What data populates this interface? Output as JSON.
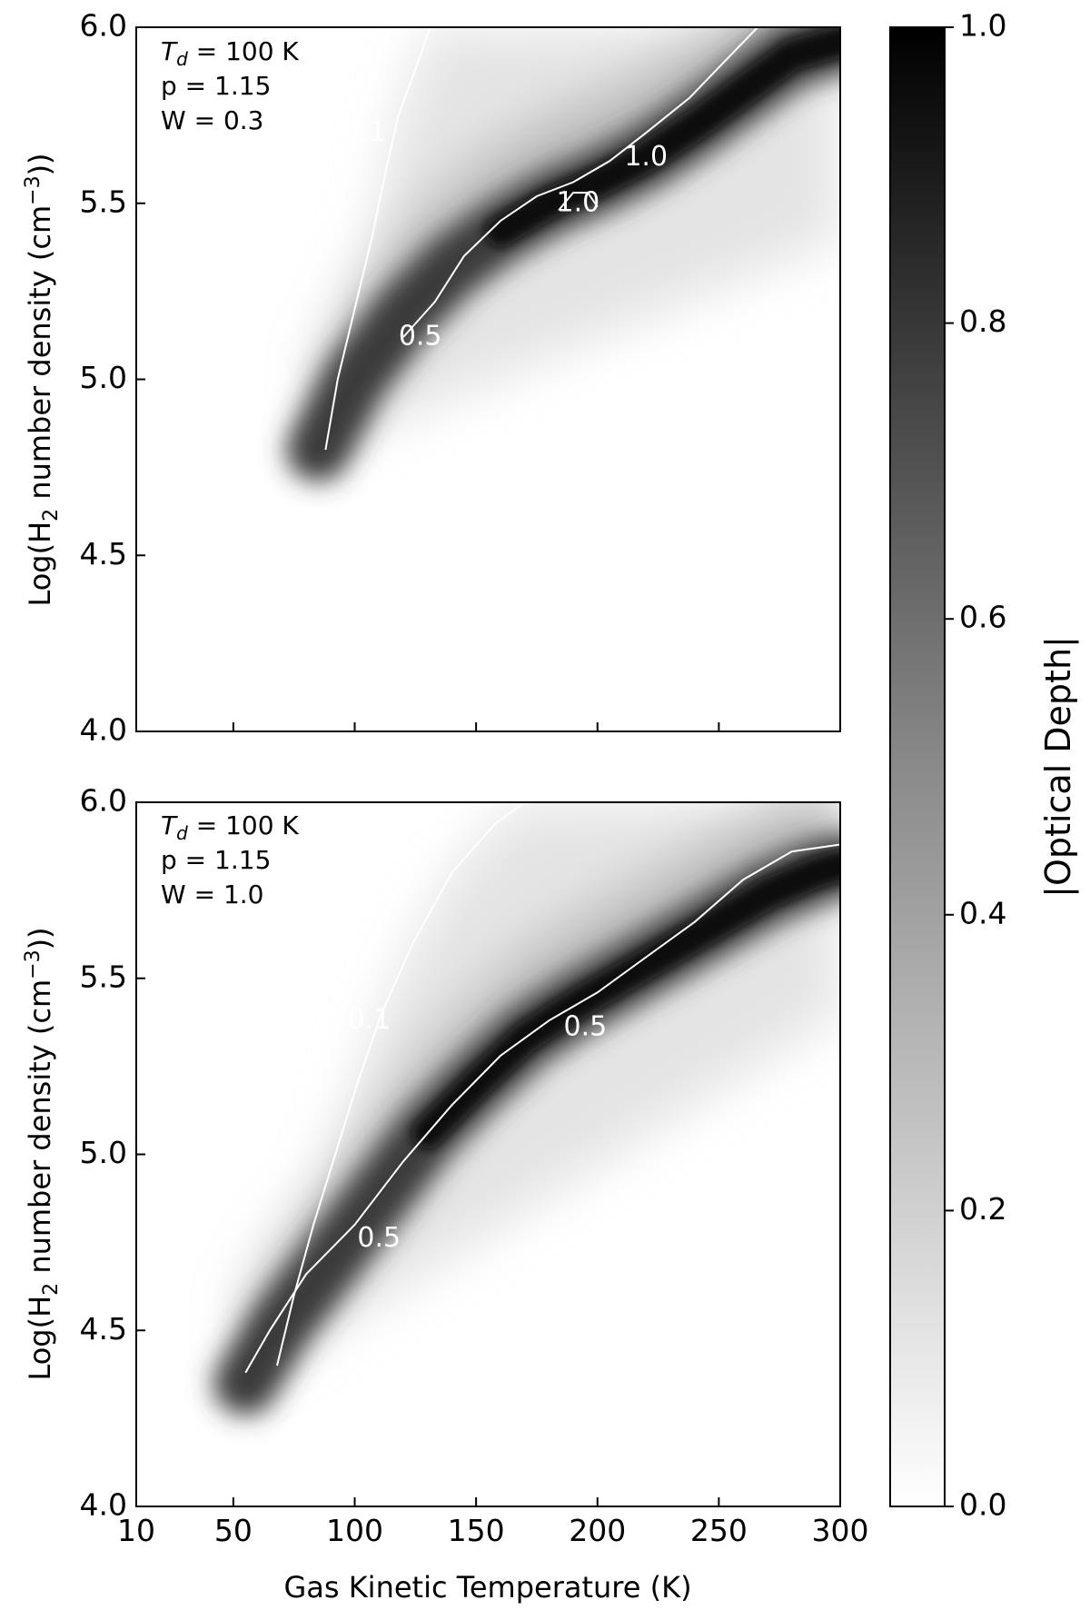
{
  "chart_data": [
    {
      "type": "heatmap",
      "panel": "top",
      "annotation": [
        "T_d = 100 K",
        "p = 1.15",
        "W = 0.3"
      ],
      "annotation_parts": {
        "td_symbol": "T",
        "td_subscript": "d",
        "td_value": " = 100 K",
        "p_line": "p = 1.15",
        "w_line": "W = 0.3"
      },
      "xlabel": "",
      "ylabel": "Log(H2 number density (cm-3))",
      "xlim": [
        10,
        300
      ],
      "ylim": [
        4.0,
        6.0
      ],
      "y_ticks": [
        "4.0",
        "4.5",
        "5.0",
        "5.5",
        "6.0"
      ],
      "contour_labels": [
        {
          "text": "0.1",
          "x": 104,
          "y": 5.7
        },
        {
          "text": "0.5",
          "x": 127,
          "y": 5.12
        },
        {
          "text": "1.0",
          "x": 192,
          "y": 5.5
        },
        {
          "text": "1.0",
          "x": 220,
          "y": 5.63
        }
      ],
      "contours": [
        {
          "level": 0.1,
          "points": [
            [
              88,
              4.8
            ],
            [
              93,
              5.0
            ],
            [
              100,
              5.2
            ],
            [
              107,
              5.4
            ],
            [
              113,
              5.6
            ],
            [
              118,
              5.75
            ],
            [
              125,
              5.88
            ],
            [
              131,
              6.0
            ]
          ]
        },
        {
          "level": 0.5,
          "points": [
            [
              120,
              5.12
            ],
            [
              133,
              5.22
            ],
            [
              145,
              5.35
            ],
            [
              160,
              5.45
            ],
            [
              175,
              5.52
            ],
            [
              190,
              5.56
            ],
            [
              205,
              5.62
            ],
            [
              220,
              5.7
            ],
            [
              238,
              5.8
            ],
            [
              252,
              5.9
            ],
            [
              266,
              6.0
            ]
          ]
        },
        {
          "level": 1.0,
          "points": [
            [
              184,
              5.48
            ],
            [
              190,
              5.53
            ],
            [
              196,
              5.53
            ],
            [
              200,
              5.49
            ]
          ]
        }
      ],
      "ridge": [
        [
          85,
          4.8
        ],
        [
          100,
          5.0
        ],
        [
          120,
          5.18
        ],
        [
          140,
          5.32
        ],
        [
          160,
          5.42
        ],
        [
          180,
          5.5
        ],
        [
          200,
          5.56
        ],
        [
          220,
          5.63
        ],
        [
          240,
          5.72
        ],
        [
          260,
          5.82
        ],
        [
          280,
          5.92
        ],
        [
          300,
          5.96
        ]
      ]
    },
    {
      "type": "heatmap",
      "panel": "bottom",
      "annotation": [
        "T_d = 100 K",
        "p = 1.15",
        "W = 1.0"
      ],
      "annotation_parts": {
        "td_symbol": "T",
        "td_subscript": "d",
        "td_value": " = 100 K",
        "p_line": "p = 1.15",
        "w_line": "W = 1.0"
      },
      "xlabel": "Gas Kinetic Temperature (K)",
      "ylabel": "Log(H2 number density (cm-3))",
      "xlim": [
        10,
        300
      ],
      "ylim": [
        4.0,
        6.0
      ],
      "x_ticks": [
        "10",
        "50",
        "100",
        "150",
        "200",
        "250",
        "300"
      ],
      "y_ticks": [
        "4.0",
        "4.5",
        "5.0",
        "5.5",
        "6.0"
      ],
      "contour_labels": [
        {
          "text": "0.1",
          "x": 106,
          "y": 5.38
        },
        {
          "text": "0.5",
          "x": 110,
          "y": 4.76
        },
        {
          "text": "0.5",
          "x": 195,
          "y": 5.36
        }
      ],
      "contours": [
        {
          "level": 0.1,
          "points": [
            [
              68,
              4.4
            ],
            [
              75,
              4.6
            ],
            [
              83,
              4.8
            ],
            [
              92,
              5.0
            ],
            [
              101,
              5.2
            ],
            [
              111,
              5.4
            ],
            [
              124,
              5.6
            ],
            [
              140,
              5.8
            ],
            [
              158,
              5.94
            ],
            [
              170,
              6.0
            ]
          ]
        },
        {
          "level": 0.5,
          "points": [
            [
              55,
              4.38
            ],
            [
              65,
              4.5
            ],
            [
              80,
              4.66
            ],
            [
              100,
              4.8
            ],
            [
              120,
              4.98
            ],
            [
              140,
              5.14
            ],
            [
              160,
              5.28
            ],
            [
              180,
              5.38
            ],
            [
              200,
              5.46
            ],
            [
              220,
              5.56
            ],
            [
              240,
              5.66
            ],
            [
              260,
              5.78
            ],
            [
              280,
              5.86
            ],
            [
              300,
              5.88
            ]
          ]
        }
      ],
      "ridge": [
        [
          55,
          4.35
        ],
        [
          70,
          4.52
        ],
        [
          90,
          4.7
        ],
        [
          110,
          4.88
        ],
        [
          130,
          5.06
        ],
        [
          150,
          5.2
        ],
        [
          170,
          5.33
        ],
        [
          190,
          5.42
        ],
        [
          210,
          5.5
        ],
        [
          230,
          5.58
        ],
        [
          250,
          5.66
        ],
        [
          270,
          5.74
        ],
        [
          290,
          5.8
        ],
        [
          300,
          5.82
        ]
      ]
    }
  ],
  "colorbar": {
    "label": "|Optical Depth|",
    "range": [
      0.0,
      1.0
    ],
    "ticks": [
      "0.0",
      "0.2",
      "0.4",
      "0.6",
      "0.8",
      "1.0"
    ],
    "colors": {
      "low": "#ffffff",
      "high": "#000000"
    }
  },
  "axis_text": {
    "ylabel_prefix": "Log(H",
    "ylabel_sub": "2",
    "ylabel_mid": " number density (cm",
    "ylabel_sup": "−3",
    "ylabel_suffix": "))",
    "xlabel": "Gas Kinetic Temperature (K)"
  }
}
